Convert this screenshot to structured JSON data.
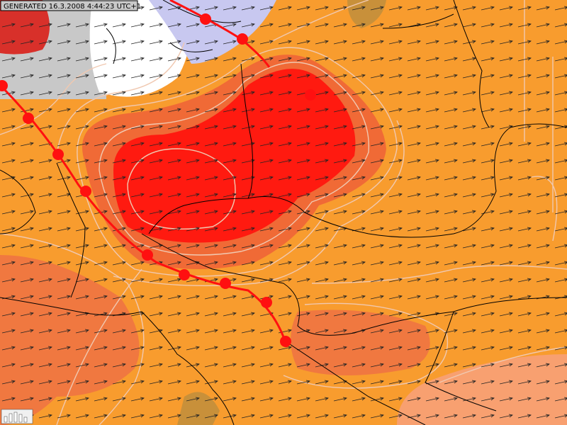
{
  "header": {
    "generated": "GENERATED 16.3.2008 4:44:23 UTC+1"
  }
}
